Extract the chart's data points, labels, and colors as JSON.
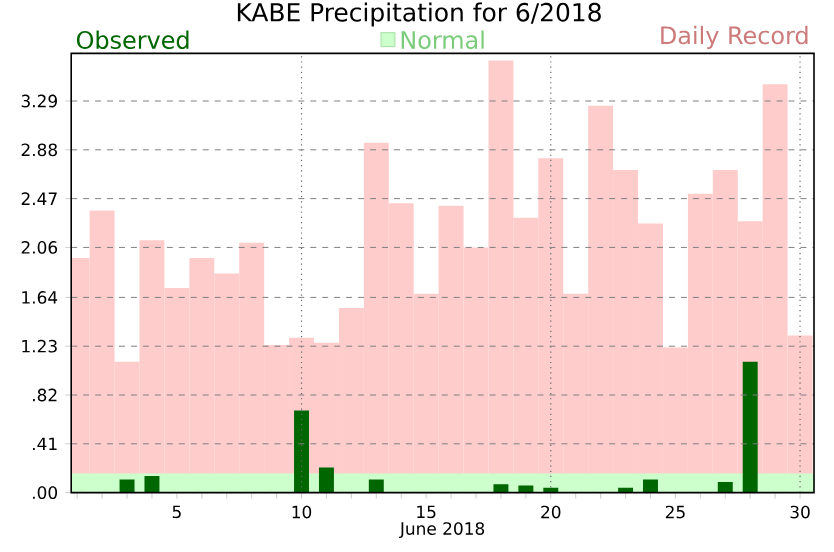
{
  "chart_data": {
    "type": "bar",
    "title": "KABE Precipitation for 6/2018",
    "xlabel": "June 2018",
    "x": [
      1,
      2,
      3,
      4,
      5,
      6,
      7,
      8,
      9,
      10,
      11,
      12,
      13,
      14,
      15,
      16,
      17,
      18,
      19,
      20,
      21,
      22,
      23,
      24,
      25,
      26,
      27,
      28,
      29,
      30
    ],
    "xlim": [
      0.76,
      30.56
    ],
    "xticks": [
      {
        "value": 1,
        "label": null
      },
      {
        "value": 2,
        "label": null
      },
      {
        "value": 3,
        "label": null
      },
      {
        "value": 4,
        "label": null
      },
      5,
      {
        "value": 6,
        "label": null
      },
      {
        "value": 7,
        "label": null
      },
      {
        "value": 8,
        "label": null
      },
      {
        "value": 9,
        "label": null
      },
      10,
      {
        "value": 11,
        "label": null
      },
      {
        "value": 12,
        "label": null
      },
      {
        "value": 13,
        "label": null
      },
      {
        "value": 14,
        "label": null
      },
      15,
      {
        "value": 16,
        "label": null
      },
      {
        "value": 17,
        "label": null
      },
      {
        "value": 18,
        "label": null
      },
      {
        "value": 19,
        "label": null
      },
      20,
      {
        "value": 21,
        "label": null
      },
      {
        "value": 22,
        "label": null
      },
      {
        "value": 23,
        "label": null
      },
      {
        "value": 24,
        "label": null
      },
      25,
      {
        "value": 26,
        "label": null
      },
      {
        "value": 27,
        "label": null
      },
      {
        "value": 28,
        "label": null
      },
      {
        "value": 29,
        "label": null
      },
      30
    ],
    "ylim": [
      0,
      3.69
    ],
    "yticks": [
      {
        "value": 0,
        "label": ".00"
      },
      {
        "value": 0.41,
        "label": ".41"
      },
      {
        "value": 0.82,
        "label": ".82"
      },
      1.23,
      1.64,
      2.06,
      2.47,
      2.88,
      3.29
    ],
    "grid": "y",
    "legend": "top",
    "bands": [
      {
        "axis": "y",
        "from": 0,
        "to": 0.16,
        "label": "Normal",
        "color": "#ccffcc"
      }
    ],
    "ref_lines": [
      {
        "axis": "x",
        "value": 10,
        "line_style": "dotted"
      },
      {
        "axis": "x",
        "value": 20,
        "line_style": "dotted"
      },
      {
        "axis": "x",
        "value": 30,
        "line_style": "dotted"
      }
    ],
    "series": [
      {
        "name": "Observed",
        "color": "#006600",
        "values": [
          0,
          0,
          0.11,
          0.14,
          0,
          0,
          0,
          0,
          0,
          0.69,
          0.21,
          0,
          0.11,
          0,
          0,
          0,
          0,
          0.07,
          0.06,
          0.04,
          0,
          0,
          0.04,
          0.11,
          0,
          0,
          0.09,
          1.1,
          0,
          0
        ]
      },
      {
        "name": "Daily Record",
        "color": "#ffcccc",
        "values": [
          1.97,
          2.37,
          1.1,
          2.12,
          1.72,
          1.97,
          1.84,
          2.1,
          1.24,
          1.3,
          1.26,
          1.55,
          2.94,
          2.43,
          1.67,
          2.41,
          2.06,
          3.63,
          2.31,
          2.81,
          1.67,
          3.25,
          2.71,
          2.26,
          1.22,
          2.51,
          2.71,
          2.28,
          3.43,
          1.32
        ]
      }
    ]
  }
}
